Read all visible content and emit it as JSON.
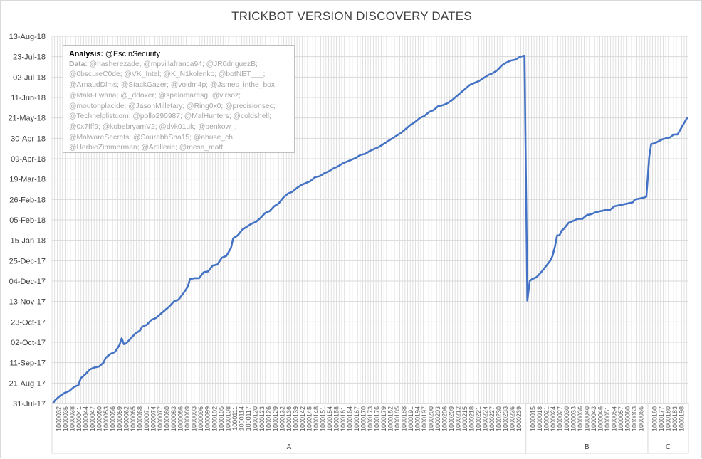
{
  "chart_data": {
    "type": "line",
    "title": "TRICKBOT VERSION DISCOVERY DATES",
    "xlabel": "",
    "ylabel": "",
    "y_axis": "date",
    "ylim": [
      "2017-07-31",
      "2018-08-13"
    ],
    "yticks": [
      "13-Aug-18",
      "23-Jul-18",
      "02-Jul-18",
      "11-Jun-18",
      "21-May-18",
      "30-Apr-18",
      "09-Apr-18",
      "19-Mar-18",
      "26-Feb-18",
      "05-Feb-18",
      "15-Jan-18",
      "25-Dec-17",
      "04-Dec-17",
      "13-Nov-17",
      "23-Oct-17",
      "02-Oct-17",
      "11-Sep-17",
      "21-Aug-17",
      "31-Jul-17"
    ],
    "grid": true,
    "legend": "none",
    "color": "#4472c4",
    "groups": [
      {
        "name": "A",
        "tick_labels": [
          "1000032",
          "1000035",
          "1000038",
          "1000041",
          "1000044",
          "1000047",
          "1000050",
          "1000053",
          "1000056",
          "1000059",
          "1000062",
          "1000065",
          "1000068",
          "1000071",
          "1000074",
          "1000077",
          "1000080",
          "1000083",
          "1000086",
          "1000089",
          "1000093",
          "1000096",
          "1000099",
          "1000102",
          "1000105",
          "1000108",
          "1000111",
          "1000114",
          "1000117",
          "1000120",
          "1000123",
          "1000126",
          "1000129",
          "1000132",
          "1000136",
          "1000139",
          "1000142",
          "1000145",
          "1000148",
          "1000151",
          "1000154",
          "1000158",
          "1000161",
          "1000164",
          "1000167",
          "1000170",
          "1000173",
          "1000176",
          "1000179",
          "1000182",
          "1000185",
          "1000188",
          "1000191",
          "1000194",
          "1000197",
          "1000200",
          "1000203",
          "1000206",
          "1000209",
          "1000212",
          "1000215",
          "1000218",
          "1000221",
          "1000224",
          "1000227",
          "1000230",
          "1000233",
          "1000236",
          "1000239"
        ],
        "series_points": [
          [
            "1000032",
            "2017-08-01"
          ],
          [
            "1000033",
            "2017-08-04"
          ],
          [
            "1000035",
            "2017-08-08"
          ],
          [
            "1000037",
            "2017-08-11"
          ],
          [
            "1000039",
            "2017-08-13"
          ],
          [
            "1000041",
            "2017-08-17"
          ],
          [
            "1000043",
            "2017-08-19"
          ],
          [
            "1000044",
            "2017-08-26"
          ],
          [
            "1000046",
            "2017-08-30"
          ],
          [
            "1000048",
            "2017-09-04"
          ],
          [
            "1000050",
            "2017-09-06"
          ],
          [
            "1000052",
            "2017-09-07"
          ],
          [
            "1000054",
            "2017-09-11"
          ],
          [
            "1000055",
            "2017-09-16"
          ],
          [
            "1000057",
            "2017-09-20"
          ],
          [
            "1000059",
            "2017-09-22"
          ],
          [
            "1000061",
            "2017-09-29"
          ],
          [
            "1000062",
            "2017-10-06"
          ],
          [
            "1000063",
            "2017-09-30"
          ],
          [
            "1000064",
            "2017-10-01"
          ],
          [
            "1000066",
            "2017-10-06"
          ],
          [
            "1000068",
            "2017-10-11"
          ],
          [
            "1000070",
            "2017-10-14"
          ],
          [
            "1000071",
            "2017-10-18"
          ],
          [
            "1000073",
            "2017-10-20"
          ],
          [
            "1000075",
            "2017-10-25"
          ],
          [
            "1000077",
            "2017-10-27"
          ],
          [
            "1000079",
            "2017-10-31"
          ],
          [
            "1000081",
            "2017-11-04"
          ],
          [
            "1000083",
            "2017-11-08"
          ],
          [
            "1000085",
            "2017-11-13"
          ],
          [
            "1000087",
            "2017-11-15"
          ],
          [
            "1000089",
            "2017-11-21"
          ],
          [
            "1000091",
            "2017-11-28"
          ],
          [
            "1000092",
            "2017-12-06"
          ],
          [
            "1000094",
            "2017-12-07"
          ],
          [
            "1000096",
            "2017-12-07"
          ],
          [
            "1000098",
            "2017-12-13"
          ],
          [
            "1000100",
            "2017-12-14"
          ],
          [
            "1000102",
            "2017-12-20"
          ],
          [
            "1000104",
            "2017-12-21"
          ],
          [
            "1000106",
            "2017-12-28"
          ],
          [
            "1000108",
            "2017-12-30"
          ],
          [
            "1000110",
            "2018-01-07"
          ],
          [
            "1000111",
            "2018-01-17"
          ],
          [
            "1000113",
            "2018-01-20"
          ],
          [
            "1000115",
            "2018-01-26"
          ],
          [
            "1000117",
            "2018-01-29"
          ],
          [
            "1000119",
            "2018-02-01"
          ],
          [
            "1000121",
            "2018-02-03"
          ],
          [
            "1000123",
            "2018-02-07"
          ],
          [
            "1000125",
            "2018-02-12"
          ],
          [
            "1000127",
            "2018-02-14"
          ],
          [
            "1000129",
            "2018-02-19"
          ],
          [
            "1000131",
            "2018-02-22"
          ],
          [
            "1000133",
            "2018-02-28"
          ],
          [
            "1000135",
            "2018-03-04"
          ],
          [
            "1000137",
            "2018-03-06"
          ],
          [
            "1000139",
            "2018-03-10"
          ],
          [
            "1000141",
            "2018-03-13"
          ],
          [
            "1000143",
            "2018-03-15"
          ],
          [
            "1000145",
            "2018-03-17"
          ],
          [
            "1000147",
            "2018-03-21"
          ],
          [
            "1000149",
            "2018-03-22"
          ],
          [
            "1000151",
            "2018-03-25"
          ],
          [
            "1000153",
            "2018-03-27"
          ],
          [
            "1000155",
            "2018-03-30"
          ],
          [
            "1000157",
            "2018-04-01"
          ],
          [
            "1000159",
            "2018-04-04"
          ],
          [
            "1000161",
            "2018-04-06"
          ],
          [
            "1000163",
            "2018-04-08"
          ],
          [
            "1000165",
            "2018-04-10"
          ],
          [
            "1000167",
            "2018-04-13"
          ],
          [
            "1000169",
            "2018-04-14"
          ],
          [
            "1000171",
            "2018-04-17"
          ],
          [
            "1000173",
            "2018-04-19"
          ],
          [
            "1000175",
            "2018-04-21"
          ],
          [
            "1000177",
            "2018-04-24"
          ],
          [
            "1000179",
            "2018-04-27"
          ],
          [
            "1000181",
            "2018-04-30"
          ],
          [
            "1000183",
            "2018-05-03"
          ],
          [
            "1000185",
            "2018-05-06"
          ],
          [
            "1000187",
            "2018-05-10"
          ],
          [
            "1000189",
            "2018-05-14"
          ],
          [
            "1000191",
            "2018-05-17"
          ],
          [
            "1000193",
            "2018-05-21"
          ],
          [
            "1000195",
            "2018-05-23"
          ],
          [
            "1000197",
            "2018-05-27"
          ],
          [
            "1000199",
            "2018-05-29"
          ],
          [
            "1000201",
            "2018-06-02"
          ],
          [
            "1000203",
            "2018-06-03"
          ],
          [
            "1000205",
            "2018-06-05"
          ],
          [
            "1000207",
            "2018-06-08"
          ],
          [
            "1000209",
            "2018-06-12"
          ],
          [
            "1000211",
            "2018-06-16"
          ],
          [
            "1000213",
            "2018-06-20"
          ],
          [
            "1000215",
            "2018-06-24"
          ],
          [
            "1000217",
            "2018-06-26"
          ],
          [
            "1000219",
            "2018-06-28"
          ],
          [
            "1000221",
            "2018-07-01"
          ],
          [
            "1000223",
            "2018-07-04"
          ],
          [
            "1000225",
            "2018-07-06"
          ],
          [
            "1000227",
            "2018-07-09"
          ],
          [
            "1000229",
            "2018-07-14"
          ],
          [
            "1000231",
            "2018-07-17"
          ],
          [
            "1000233",
            "2018-07-19"
          ],
          [
            "1000235",
            "2018-07-20"
          ],
          [
            "1000237",
            "2018-07-23"
          ],
          [
            "1000239",
            "2018-07-24"
          ]
        ]
      },
      {
        "name": "B",
        "tick_labels": [
          "1000015",
          "1000018",
          "1000021",
          "1000024",
          "1000027",
          "1000030",
          "1000033",
          "1000036",
          "1000040",
          "1000043",
          "1000046",
          "1000051",
          "1000054",
          "1000057",
          "1000060",
          "1000063",
          "1000066"
        ],
        "series_points": [
          [
            "1000015",
            "2017-11-14"
          ],
          [
            "1000016",
            "2017-12-04"
          ],
          [
            "1000017",
            "2017-12-06"
          ],
          [
            "1000019",
            "2017-12-08"
          ],
          [
            "1000021",
            "2017-12-13"
          ],
          [
            "1000023",
            "2017-12-19"
          ],
          [
            "1000025",
            "2017-12-25"
          ],
          [
            "1000026",
            "2017-12-30"
          ],
          [
            "1000027",
            "2018-01-08"
          ],
          [
            "1000028",
            "2018-01-20"
          ],
          [
            "1000029",
            "2018-01-20"
          ],
          [
            "1000030",
            "2018-01-25"
          ],
          [
            "1000031",
            "2018-01-27"
          ],
          [
            "1000033",
            "2018-02-02"
          ],
          [
            "1000035",
            "2018-02-04"
          ],
          [
            "1000037",
            "2018-02-06"
          ],
          [
            "1000039",
            "2018-02-06"
          ],
          [
            "1000041",
            "2018-02-10"
          ],
          [
            "1000043",
            "2018-02-11"
          ],
          [
            "1000045",
            "2018-02-13"
          ],
          [
            "1000047",
            "2018-02-14"
          ],
          [
            "1000049",
            "2018-02-15"
          ],
          [
            "1000051",
            "2018-02-15"
          ],
          [
            "1000053",
            "2018-02-19"
          ],
          [
            "1000055",
            "2018-02-20"
          ],
          [
            "1000057",
            "2018-02-21"
          ],
          [
            "1000059",
            "2018-02-22"
          ],
          [
            "1000061",
            "2018-02-23"
          ],
          [
            "1000062",
            "2018-02-26"
          ],
          [
            "1000064",
            "2018-02-27"
          ],
          [
            "1000066",
            "2018-02-28"
          ],
          [
            "1000067",
            "2018-02-29"
          ]
        ]
      },
      {
        "name": "C",
        "tick_labels": [
          "1000160",
          "1000177",
          "1000180",
          "1000183",
          "1000198"
        ],
        "series_points": [
          [
            "1000158",
            "2018-04-11"
          ],
          [
            "1000160",
            "2018-04-24"
          ],
          [
            "1000164",
            "2018-04-25"
          ],
          [
            "1000168",
            "2018-04-27"
          ],
          [
            "1000172",
            "2018-04-29"
          ],
          [
            "1000176",
            "2018-04-30"
          ],
          [
            "1000180",
            "2018-05-01"
          ],
          [
            "1000184",
            "2018-05-04"
          ],
          [
            "1000188",
            "2018-05-04"
          ],
          [
            "1000198",
            "2018-05-21"
          ]
        ]
      }
    ]
  },
  "annotation": {
    "analysis_label": "Analysis:",
    "analysis_value": "@EscInSecurity",
    "data_label": "Data:",
    "data_value": "@hasherezade; @mpvillafranca94; @JR0driguezB; @0bscureC0de; @VK_Intel; @K_N1kolenko; @botNET___; @ArnaudDlms; @StackGazer; @voidm4p; @James_inthe_box; @MakFLwana; @_ddoxer; @spalomaresg; @virsoz; @moutonplacide; @JasonMilletary; @Ring0x0; @precisionsec; @Techhelplistcom; @pollo290987; @MalHunters; @coldshell; @0x7fff9; @kobebryamV2; @dvk01uk; @benkow_; @MalwareSecrets; @SaurabhSha15; @abuse_ch; @HerbieZimmerman; @Artillerie; @mesa_matt"
  }
}
